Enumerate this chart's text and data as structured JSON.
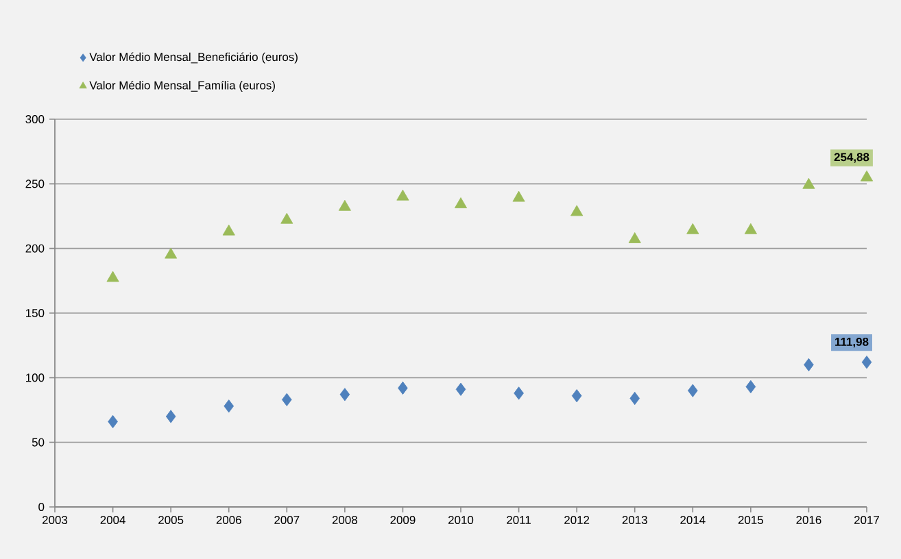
{
  "chart_data": {
    "type": "scatter",
    "x": [
      2004,
      2005,
      2006,
      2007,
      2008,
      2009,
      2010,
      2011,
      2012,
      2013,
      2014,
      2015,
      2016,
      2017
    ],
    "series": [
      {
        "name": "Valor Médio Mensal_Beneficiário (euros)",
        "color": "#4f81bd",
        "marker": "diamond",
        "values": [
          66,
          70,
          78,
          83,
          87,
          92,
          91,
          88,
          86,
          84,
          90,
          93,
          110,
          111.98
        ],
        "value_labels": [
          null,
          null,
          null,
          null,
          null,
          null,
          null,
          null,
          null,
          null,
          null,
          null,
          null,
          "111,98"
        ]
      },
      {
        "name": "Valor Médio Mensal_Família (euros)",
        "color": "#9bbb59",
        "marker": "triangle",
        "values": [
          177,
          195,
          213,
          222,
          232,
          240,
          234,
          239,
          228,
          207,
          214,
          214,
          249,
          254.88
        ],
        "value_labels": [
          null,
          null,
          null,
          null,
          null,
          null,
          null,
          null,
          null,
          null,
          null,
          null,
          null,
          "254,88"
        ]
      }
    ],
    "xlim": [
      2003,
      2017
    ],
    "xticks": [
      2003,
      2004,
      2005,
      2006,
      2007,
      2008,
      2009,
      2010,
      2011,
      2012,
      2013,
      2014,
      2015,
      2016,
      2017
    ],
    "ylim": [
      0,
      300
    ],
    "yticks": [
      0,
      50,
      100,
      150,
      200,
      250,
      300
    ],
    "grid": "y",
    "legend": "top left"
  }
}
